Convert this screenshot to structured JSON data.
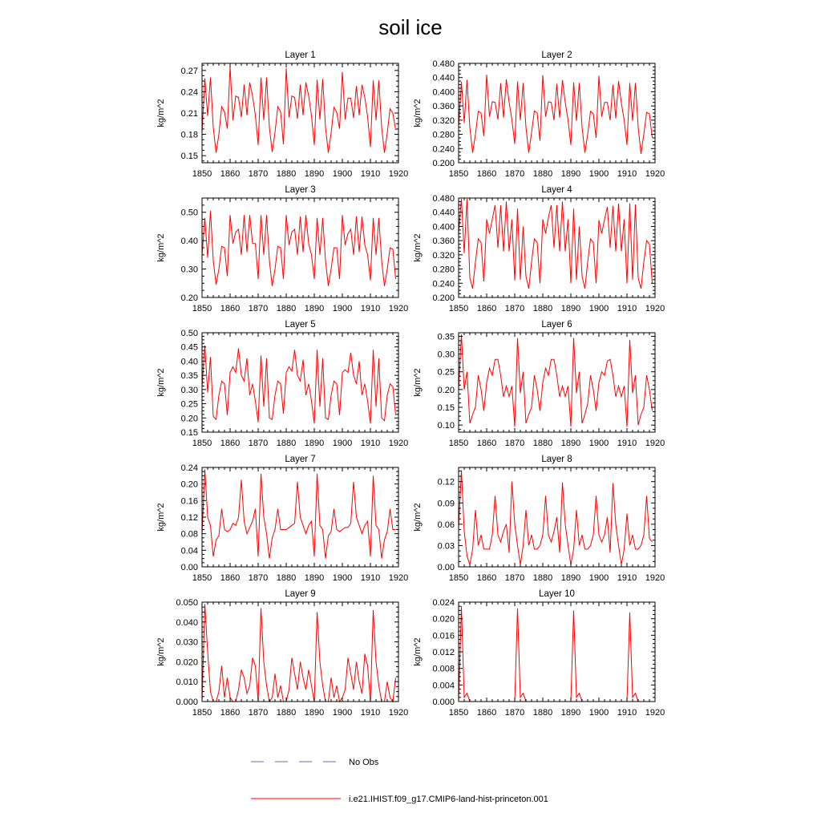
{
  "figure": {
    "title": "soil ice"
  },
  "legend": {
    "items": [
      {
        "label": "No Obs",
        "color": "#6a6ac8",
        "dash": true
      },
      {
        "label": "i.e21.IHIST.f09_g17.CMIP6-land-hist-princeton.001",
        "color": "#ff0000",
        "dash": false
      }
    ]
  },
  "colors": {
    "series": "#ff0000",
    "obs": "#6a6ac8",
    "axis": "#000000"
  },
  "chart_data": [
    {
      "type": "line",
      "title": "Layer 1",
      "ylabel": "kg/m^2",
      "xlim": [
        1850,
        1920
      ],
      "ylim": [
        0.14,
        0.28
      ],
      "yticks": [
        0.15,
        0.18,
        0.21,
        0.24,
        0.27
      ],
      "ydecimals": 2,
      "xticks": [
        1850,
        1860,
        1870,
        1880,
        1890,
        1900,
        1910,
        1920
      ],
      "series": [
        {
          "name": "i.e21.IHIST.f09_g17.CMIP6-land-hist-princeton.001",
          "x_start": 1850,
          "x_step": 1,
          "values": [
            0.182,
            0.259,
            0.206,
            0.26,
            0.19,
            0.154,
            0.18,
            0.219,
            0.212,
            0.188,
            0.275,
            0.2,
            0.234,
            0.232,
            0.204,
            0.25,
            0.207,
            0.253,
            0.234,
            0.207,
            0.165,
            0.26,
            0.2,
            0.26,
            0.19,
            0.155,
            0.183,
            0.219,
            0.212,
            0.166,
            0.273,
            0.204,
            0.234,
            0.232,
            0.202,
            0.25,
            0.207,
            0.253,
            0.234,
            0.206,
            0.165,
            0.257,
            0.201,
            0.258,
            0.19,
            0.154,
            0.182,
            0.218,
            0.211,
            0.188,
            0.268,
            0.201,
            0.231,
            0.231,
            0.203,
            0.248,
            0.207,
            0.25,
            0.232,
            0.205,
            0.162,
            0.256,
            0.2,
            0.256,
            0.19,
            0.154,
            0.182,
            0.216,
            0.21,
            0.186
          ]
        }
      ]
    },
    {
      "type": "line",
      "title": "Layer 2",
      "ylabel": "kg/m^2",
      "xlim": [
        1850,
        1920
      ],
      "ylim": [
        0.2,
        0.48
      ],
      "yticks": [
        0.2,
        0.24,
        0.28,
        0.32,
        0.36,
        0.4,
        0.44,
        0.48
      ],
      "ydecimals": 3,
      "xticks": [
        1850,
        1860,
        1870,
        1880,
        1890,
        1900,
        1910,
        1920
      ],
      "series": [
        {
          "name": "i.e21.IHIST.f09_g17.CMIP6-land-hist-princeton.001",
          "x_start": 1850,
          "x_step": 1,
          "values": [
            0.3,
            0.428,
            0.312,
            0.434,
            0.3,
            0.228,
            0.28,
            0.345,
            0.34,
            0.275,
            0.448,
            0.33,
            0.372,
            0.37,
            0.322,
            0.424,
            0.327,
            0.435,
            0.37,
            0.321,
            0.253,
            0.429,
            0.32,
            0.425,
            0.3,
            0.228,
            0.285,
            0.346,
            0.34,
            0.262,
            0.447,
            0.33,
            0.372,
            0.37,
            0.32,
            0.422,
            0.327,
            0.433,
            0.37,
            0.32,
            0.25,
            0.426,
            0.318,
            0.425,
            0.3,
            0.228,
            0.28,
            0.345,
            0.338,
            0.27,
            0.445,
            0.33,
            0.37,
            0.37,
            0.32,
            0.42,
            0.325,
            0.43,
            0.368,
            0.32,
            0.25,
            0.425,
            0.318,
            0.425,
            0.3,
            0.225,
            0.28,
            0.342,
            0.338,
            0.27
          ]
        }
      ]
    },
    {
      "type": "line",
      "title": "Layer 3",
      "ylabel": "kg/m^2",
      "xlim": [
        1850,
        1920
      ],
      "ylim": [
        0.2,
        0.55
      ],
      "yticks": [
        0.2,
        0.3,
        0.4,
        0.5
      ],
      "ydecimals": 2,
      "xticks": [
        1850,
        1860,
        1870,
        1880,
        1890,
        1900,
        1910,
        1920
      ],
      "series": [
        {
          "name": "i.e21.IHIST.f09_g17.CMIP6-land-hist-princeton.001",
          "x_start": 1850,
          "x_step": 1,
          "values": [
            0.35,
            0.48,
            0.34,
            0.505,
            0.33,
            0.245,
            0.3,
            0.38,
            0.375,
            0.275,
            0.49,
            0.39,
            0.43,
            0.44,
            0.35,
            0.49,
            0.36,
            0.49,
            0.39,
            0.39,
            0.265,
            0.49,
            0.35,
            0.49,
            0.33,
            0.24,
            0.3,
            0.38,
            0.375,
            0.265,
            0.49,
            0.385,
            0.43,
            0.44,
            0.35,
            0.485,
            0.36,
            0.49,
            0.39,
            0.35,
            0.265,
            0.48,
            0.35,
            0.48,
            0.33,
            0.24,
            0.3,
            0.375,
            0.375,
            0.265,
            0.49,
            0.385,
            0.425,
            0.44,
            0.35,
            0.485,
            0.36,
            0.485,
            0.385,
            0.35,
            0.26,
            0.48,
            0.35,
            0.48,
            0.33,
            0.24,
            0.3,
            0.375,
            0.37,
            0.265
          ]
        }
      ]
    },
    {
      "type": "line",
      "title": "Layer 4",
      "ylabel": "kg/m^2",
      "xlim": [
        1850,
        1920
      ],
      "ylim": [
        0.2,
        0.48
      ],
      "yticks": [
        0.2,
        0.24,
        0.28,
        0.32,
        0.36,
        0.4,
        0.44,
        0.48
      ],
      "ydecimals": 3,
      "xticks": [
        1850,
        1860,
        1870,
        1880,
        1890,
        1900,
        1910,
        1920
      ],
      "series": [
        {
          "name": "i.e21.IHIST.f09_g17.CMIP6-land-hist-princeton.001",
          "x_start": 1850,
          "x_step": 1,
          "values": [
            0.38,
            0.478,
            0.325,
            0.478,
            0.255,
            0.225,
            0.3,
            0.365,
            0.355,
            0.245,
            0.42,
            0.38,
            0.42,
            0.46,
            0.34,
            0.46,
            0.33,
            0.47,
            0.33,
            0.42,
            0.248,
            0.45,
            0.25,
            0.4,
            0.26,
            0.225,
            0.3,
            0.365,
            0.355,
            0.24,
            0.42,
            0.38,
            0.425,
            0.46,
            0.34,
            0.46,
            0.33,
            0.47,
            0.33,
            0.42,
            0.24,
            0.45,
            0.25,
            0.4,
            0.26,
            0.225,
            0.3,
            0.365,
            0.355,
            0.24,
            0.418,
            0.38,
            0.42,
            0.455,
            0.34,
            0.458,
            0.33,
            0.465,
            0.33,
            0.42,
            0.24,
            0.465,
            0.25,
            0.462,
            0.255,
            0.225,
            0.3,
            0.36,
            0.35,
            0.24
          ]
        }
      ]
    },
    {
      "type": "line",
      "title": "Layer 5",
      "ylabel": "kg/m^2",
      "xlim": [
        1850,
        1920
      ],
      "ylim": [
        0.15,
        0.5
      ],
      "yticks": [
        0.15,
        0.2,
        0.25,
        0.3,
        0.35,
        0.4,
        0.45,
        0.5
      ],
      "ydecimals": 2,
      "xticks": [
        1850,
        1860,
        1870,
        1880,
        1890,
        1900,
        1910,
        1920
      ],
      "series": [
        {
          "name": "i.e21.IHIST.f09_g17.CMIP6-land-hist-princeton.001",
          "x_start": 1850,
          "x_step": 1,
          "values": [
            0.31,
            0.455,
            0.29,
            0.415,
            0.205,
            0.195,
            0.28,
            0.33,
            0.32,
            0.21,
            0.36,
            0.38,
            0.36,
            0.445,
            0.35,
            0.33,
            0.41,
            0.28,
            0.32,
            0.26,
            0.185,
            0.42,
            0.24,
            0.41,
            0.2,
            0.195,
            0.28,
            0.33,
            0.32,
            0.215,
            0.36,
            0.38,
            0.365,
            0.44,
            0.35,
            0.33,
            0.405,
            0.28,
            0.32,
            0.26,
            0.18,
            0.44,
            0.24,
            0.41,
            0.2,
            0.195,
            0.28,
            0.33,
            0.32,
            0.21,
            0.36,
            0.37,
            0.36,
            0.43,
            0.35,
            0.32,
            0.4,
            0.28,
            0.32,
            0.26,
            0.18,
            0.44,
            0.24,
            0.41,
            0.2,
            0.19,
            0.28,
            0.32,
            0.31,
            0.21
          ]
        }
      ]
    },
    {
      "type": "line",
      "title": "Layer 6",
      "ylabel": "kg/m^2",
      "xlim": [
        1850,
        1920
      ],
      "ylim": [
        0.08,
        0.36
      ],
      "yticks": [
        0.1,
        0.15,
        0.2,
        0.25,
        0.3,
        0.35
      ],
      "ydecimals": 2,
      "xticks": [
        1850,
        1860,
        1870,
        1880,
        1890,
        1900,
        1910,
        1920
      ],
      "series": [
        {
          "name": "i.e21.IHIST.f09_g17.CMIP6-land-hist-princeton.001",
          "x_start": 1850,
          "x_step": 1,
          "values": [
            0.2,
            0.355,
            0.2,
            0.25,
            0.105,
            0.13,
            0.15,
            0.24,
            0.2,
            0.14,
            0.22,
            0.26,
            0.24,
            0.285,
            0.285,
            0.24,
            0.18,
            0.21,
            0.18,
            0.21,
            0.095,
            0.345,
            0.19,
            0.25,
            0.105,
            0.13,
            0.15,
            0.24,
            0.2,
            0.14,
            0.22,
            0.26,
            0.24,
            0.285,
            0.285,
            0.24,
            0.18,
            0.21,
            0.18,
            0.21,
            0.095,
            0.345,
            0.19,
            0.25,
            0.105,
            0.13,
            0.16,
            0.24,
            0.2,
            0.14,
            0.22,
            0.25,
            0.24,
            0.28,
            0.285,
            0.24,
            0.18,
            0.21,
            0.18,
            0.21,
            0.095,
            0.34,
            0.19,
            0.24,
            0.1,
            0.13,
            0.15,
            0.24,
            0.2,
            0.14
          ]
        }
      ]
    },
    {
      "type": "line",
      "title": "Layer 7",
      "ylabel": "kg/m^2",
      "xlim": [
        1850,
        1920
      ],
      "ylim": [
        0,
        0.24
      ],
      "yticks": [
        0,
        0.04,
        0.08,
        0.12,
        0.16,
        0.2,
        0.24
      ],
      "ydecimals": 2,
      "xticks": [
        1850,
        1860,
        1870,
        1880,
        1890,
        1900,
        1910,
        1920
      ],
      "series": [
        {
          "name": "i.e21.IHIST.f09_g17.CMIP6-land-hist-princeton.001",
          "x_start": 1850,
          "x_step": 1,
          "values": [
            0.08,
            0.235,
            0.12,
            0.1,
            0.025,
            0.065,
            0.075,
            0.14,
            0.09,
            0.085,
            0.09,
            0.105,
            0.1,
            0.12,
            0.21,
            0.11,
            0.08,
            0.095,
            0.11,
            0.14,
            0.025,
            0.225,
            0.12,
            0.08,
            0.02,
            0.07,
            0.09,
            0.14,
            0.09,
            0.09,
            0.09,
            0.095,
            0.1,
            0.105,
            0.205,
            0.12,
            0.1,
            0.08,
            0.1,
            0.11,
            0.025,
            0.225,
            0.1,
            0.09,
            0.02,
            0.075,
            0.085,
            0.14,
            0.09,
            0.085,
            0.09,
            0.095,
            0.095,
            0.105,
            0.205,
            0.12,
            0.1,
            0.08,
            0.1,
            0.11,
            0.025,
            0.22,
            0.1,
            0.09,
            0.02,
            0.065,
            0.085,
            0.14,
            0.09,
            0.09
          ]
        }
      ]
    },
    {
      "type": "line",
      "title": "Layer 8",
      "ylabel": "kg/m^2",
      "xlim": [
        1850,
        1920
      ],
      "ylim": [
        0,
        0.14
      ],
      "yticks": [
        0,
        0.03,
        0.06,
        0.09,
        0.12
      ],
      "ydecimals": 2,
      "xticks": [
        1850,
        1860,
        1870,
        1880,
        1890,
        1900,
        1910,
        1920
      ],
      "series": [
        {
          "name": "i.e21.IHIST.f09_g17.CMIP6-land-hist-princeton.001",
          "x_start": 1850,
          "x_step": 1,
          "values": [
            0.055,
            0.136,
            0.05,
            0.015,
            0.003,
            0.025,
            0.08,
            0.03,
            0.045,
            0.025,
            0.025,
            0.025,
            0.045,
            0.1,
            0.045,
            0.035,
            0.05,
            0.06,
            0.02,
            0.12,
            0.06,
            0.03,
            0.003,
            0.03,
            0.08,
            0.03,
            0.045,
            0.025,
            0.025,
            0.03,
            0.045,
            0.1,
            0.045,
            0.035,
            0.05,
            0.07,
            0.02,
            0.119,
            0.06,
            0.03,
            0.003,
            0.025,
            0.08,
            0.03,
            0.045,
            0.025,
            0.025,
            0.03,
            0.045,
            0.1,
            0.045,
            0.035,
            0.045,
            0.07,
            0.02,
            0.118,
            0.06,
            0.03,
            0.003,
            0.025,
            0.075,
            0.03,
            0.045,
            0.025,
            0.025,
            0.03,
            0.045,
            0.1,
            0.04,
            0.035
          ]
        }
      ]
    },
    {
      "type": "line",
      "title": "Layer 9",
      "ylabel": "kg/m^2",
      "xlim": [
        1850,
        1920
      ],
      "ylim": [
        0,
        0.05
      ],
      "yticks": [
        0,
        0.01,
        0.02,
        0.03,
        0.04,
        0.05
      ],
      "ydecimals": 3,
      "xticks": [
        1850,
        1860,
        1870,
        1880,
        1890,
        1900,
        1910,
        1920
      ],
      "series": [
        {
          "name": "i.e21.IHIST.f09_g17.CMIP6-land-hist-princeton.001",
          "x_start": 1850,
          "x_step": 1,
          "values": [
            0.0,
            0.049,
            0.025,
            0.005,
            0.0,
            0.0,
            0.005,
            0.018,
            0.002,
            0.012,
            0.002,
            0.0,
            0.0,
            0.006,
            0.016,
            0.012,
            0.004,
            0.008,
            0.022,
            0.018,
            0.0,
            0.047,
            0.02,
            0.008,
            0.0,
            0.002,
            0.014,
            0.002,
            0.008,
            0.0,
            0.0,
            0.006,
            0.022,
            0.014,
            0.006,
            0.02,
            0.012,
            0.006,
            0.016,
            0.008,
            0.0,
            0.045,
            0.02,
            0.008,
            0.0,
            0.0,
            0.012,
            0.002,
            0.008,
            0.0,
            0.002,
            0.006,
            0.022,
            0.014,
            0.006,
            0.02,
            0.01,
            0.004,
            0.024,
            0.018,
            0.0,
            0.046,
            0.02,
            0.008,
            0.0,
            0.0,
            0.01,
            0.002,
            0.0,
            0.012
          ]
        }
      ]
    },
    {
      "type": "line",
      "title": "Layer 10",
      "ylabel": "kg/m^2",
      "xlim": [
        1850,
        1920
      ],
      "ylim": [
        0,
        0.024
      ],
      "yticks": [
        0,
        0.004,
        0.008,
        0.012,
        0.016,
        0.02,
        0.024
      ],
      "ydecimals": 3,
      "xticks": [
        1850,
        1860,
        1870,
        1880,
        1890,
        1900,
        1910,
        1920
      ],
      "series": [
        {
          "name": "i.e21.IHIST.f09_g17.CMIP6-land-hist-princeton.001",
          "x_start": 1850,
          "x_step": 1,
          "values": [
            0.0,
            0.023,
            0.001,
            0.002,
            0.0,
            0.0,
            0.0,
            0.0,
            0.0,
            0.0,
            0.0,
            0.0,
            0.0,
            0.0,
            0.0,
            0.0,
            0.0,
            0.0,
            0.0,
            0.0,
            0.0,
            0.0225,
            0.001,
            0.002,
            0.0,
            0.0,
            0.0,
            0.0,
            0.0,
            0.0,
            0.0,
            0.0,
            0.0,
            0.0,
            0.0,
            0.0,
            0.0,
            0.0,
            0.0,
            0.0,
            0.0,
            0.022,
            0.001,
            0.002,
            0.0,
            0.0,
            0.0,
            0.0,
            0.0,
            0.0,
            0.0,
            0.0,
            0.0,
            0.0,
            0.0,
            0.0,
            0.0,
            0.0,
            0.0,
            0.0,
            0.0,
            0.0215,
            0.001,
            0.002,
            0.0,
            0.0,
            0.0,
            0.0,
            0.0,
            0.0
          ]
        }
      ]
    }
  ]
}
